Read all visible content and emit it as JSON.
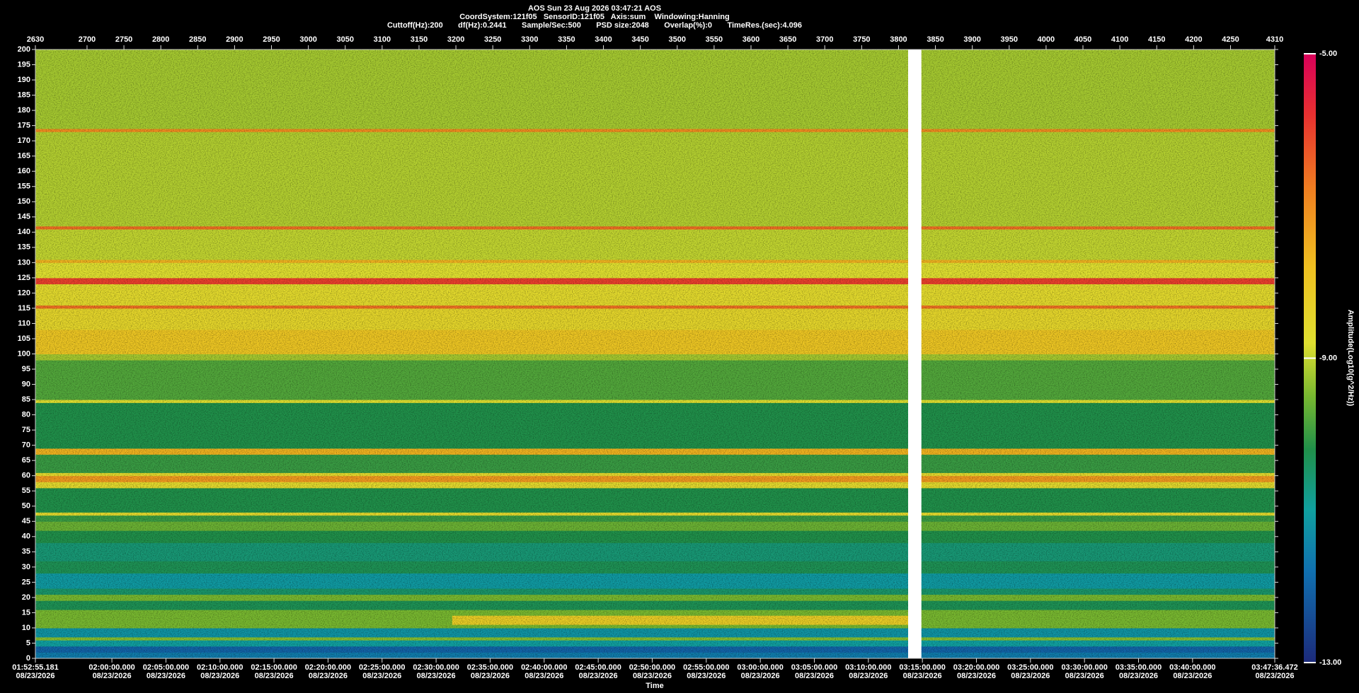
{
  "chart_data": {
    "type": "spectrogram",
    "title": "AOS  Sun 23 Aug 2026 03:47:21  AOS",
    "subtitle": [
      "CoordSystem:121f05   SensorID:121f05   Axis:sum    Windowing:Hanning",
      "Cuttoff(Hz):200       df(Hz):0.2441       Sample/Sec:500       PSD size:2048       Overlap(%):0       TimeRes.(sec):4.096"
    ],
    "xlabel": "Time",
    "colorbar_label": "Amplitude(Log10(g^2/Hz))",
    "xlim": [
      2630,
      4310
    ],
    "xticks": [
      2630,
      2700,
      2750,
      2800,
      2850,
      2900,
      2950,
      3000,
      3050,
      3100,
      3150,
      3200,
      3250,
      3300,
      3350,
      3400,
      3450,
      3500,
      3550,
      3600,
      3650,
      3700,
      3750,
      3800,
      3850,
      3900,
      3950,
      4000,
      4050,
      4100,
      4150,
      4200,
      4250,
      4310
    ],
    "timelim": [
      "2026-08-23T01:52:55.181",
      "2026-08-23T03:47:36.472"
    ],
    "timeticks": [
      {
        "value": "2026-08-23T01:52:55.181",
        "label": "01:52:55.181",
        "date": "08/23/2026"
      },
      {
        "value": "2026-08-23T02:00:00.000",
        "label": "02:00:00.000",
        "date": "08/23/2026"
      },
      {
        "value": "2026-08-23T02:05:00.000",
        "label": "02:05:00.000",
        "date": "08/23/2026"
      },
      {
        "value": "2026-08-23T02:10:00.000",
        "label": "02:10:00.000",
        "date": "08/23/2026"
      },
      {
        "value": "2026-08-23T02:15:00.000",
        "label": "02:15:00.000",
        "date": "08/23/2026"
      },
      {
        "value": "2026-08-23T02:20:00.000",
        "label": "02:20:00.000",
        "date": "08/23/2026"
      },
      {
        "value": "2026-08-23T02:25:00.000",
        "label": "02:25:00.000",
        "date": "08/23/2026"
      },
      {
        "value": "2026-08-23T02:30:00.000",
        "label": "02:30:00.000",
        "date": "08/23/2026"
      },
      {
        "value": "2026-08-23T02:35:00.000",
        "label": "02:35:00.000",
        "date": "08/23/2026"
      },
      {
        "value": "2026-08-23T02:40:00.000",
        "label": "02:40:00.000",
        "date": "08/23/2026"
      },
      {
        "value": "2026-08-23T02:45:00.000",
        "label": "02:45:00.000",
        "date": "08/23/2026"
      },
      {
        "value": "2026-08-23T02:50:00.000",
        "label": "02:50:00.000",
        "date": "08/23/2026"
      },
      {
        "value": "2026-08-23T02:55:00.000",
        "label": "02:55:00.000",
        "date": "08/23/2026"
      },
      {
        "value": "2026-08-23T03:00:00.000",
        "label": "03:00:00.000",
        "date": "08/23/2026"
      },
      {
        "value": "2026-08-23T03:05:00.000",
        "label": "03:05:00.000",
        "date": "08/23/2026"
      },
      {
        "value": "2026-08-23T03:10:00.000",
        "label": "03:10:00.000",
        "date": "08/23/2026"
      },
      {
        "value": "2026-08-23T03:15:00.000",
        "label": "03:15:00.000",
        "date": "08/23/2026"
      },
      {
        "value": "2026-08-23T03:20:00.000",
        "label": "03:20:00.000",
        "date": "08/23/2026"
      },
      {
        "value": "2026-08-23T03:25:00.000",
        "label": "03:25:00.000",
        "date": "08/23/2026"
      },
      {
        "value": "2026-08-23T03:30:00.000",
        "label": "03:30:00.000",
        "date": "08/23/2026"
      },
      {
        "value": "2026-08-23T03:35:00.000",
        "label": "03:35:00.000",
        "date": "08/23/2026"
      },
      {
        "value": "2026-08-23T03:40:00.000",
        "label": "03:40:00.000",
        "date": "08/23/2026"
      },
      {
        "value": "2026-08-23T03:47:36.472",
        "label": "03:47:36.472",
        "date": "08/23/2026"
      }
    ],
    "ylim": [
      0,
      200
    ],
    "yticks": [
      0,
      5,
      10,
      15,
      20,
      25,
      30,
      35,
      40,
      45,
      50,
      55,
      60,
      65,
      70,
      75,
      80,
      85,
      90,
      95,
      100,
      105,
      110,
      115,
      120,
      125,
      130,
      135,
      140,
      145,
      150,
      155,
      160,
      165,
      170,
      175,
      180,
      185,
      190,
      195,
      200
    ],
    "clim": [
      -13,
      -5
    ],
    "cticks": [
      {
        "value": -5,
        "label": "-5.00"
      },
      {
        "value": -9,
        "label": "-9.00"
      },
      {
        "value": -13,
        "label": "-13.00"
      }
    ],
    "colormap": [
      {
        "value": -13,
        "color": "#1c2a7a"
      },
      {
        "value": -11.8,
        "color": "#1070b0"
      },
      {
        "value": -11,
        "color": "#10a0a0"
      },
      {
        "value": -10.2,
        "color": "#20904a"
      },
      {
        "value": -9.5,
        "color": "#78b830"
      },
      {
        "value": -8.8,
        "color": "#e0e030"
      },
      {
        "value": -7.8,
        "color": "#f0c020"
      },
      {
        "value": -6.8,
        "color": "#f08020"
      },
      {
        "value": -5.8,
        "color": "#e83030"
      },
      {
        "value": -5,
        "color": "#d8005a"
      }
    ],
    "bands": [
      {
        "from": 0,
        "to": 2,
        "amplitude": -11.6
      },
      {
        "from": 2,
        "to": 4,
        "amplitude": -12
      },
      {
        "from": 4,
        "to": 6,
        "amplitude": -11
      },
      {
        "from": 6,
        "to": 7,
        "amplitude": -9.4
      },
      {
        "from": 7,
        "to": 10,
        "amplitude": -11.2
      },
      {
        "from": 10,
        "to": 16,
        "amplitude": -9.5
      },
      {
        "from": 16,
        "to": 19,
        "amplitude": -10.3
      },
      {
        "from": 19,
        "to": 21,
        "amplitude": -9.5
      },
      {
        "from": 21,
        "to": 23,
        "amplitude": -10.5
      },
      {
        "from": 23,
        "to": 28,
        "amplitude": -11.1
      },
      {
        "from": 28,
        "to": 32,
        "amplitude": -10.3
      },
      {
        "from": 32,
        "to": 38,
        "amplitude": -10.6
      },
      {
        "from": 38,
        "to": 42,
        "amplitude": -10.2
      },
      {
        "from": 42,
        "to": 45,
        "amplitude": -9.6
      },
      {
        "from": 45,
        "to": 47,
        "amplitude": -10
      },
      {
        "from": 47,
        "to": 48,
        "amplitude": -8.6
      },
      {
        "from": 48,
        "to": 56,
        "amplitude": -10.2
      },
      {
        "from": 56,
        "to": 58,
        "amplitude": -8.6
      },
      {
        "from": 58,
        "to": 60,
        "amplitude": -7.2
      },
      {
        "from": 60,
        "to": 61,
        "amplitude": -8.6
      },
      {
        "from": 61,
        "to": 67,
        "amplitude": -10
      },
      {
        "from": 67,
        "to": 69,
        "amplitude": -7.6
      },
      {
        "from": 69,
        "to": 84,
        "amplitude": -10.2
      },
      {
        "from": 84,
        "to": 85,
        "amplitude": -8.8
      },
      {
        "from": 85,
        "to": 98,
        "amplitude": -9.8
      },
      {
        "from": 98,
        "to": 100,
        "amplitude": -9.2
      },
      {
        "from": 100,
        "to": 108,
        "amplitude": -8
      },
      {
        "from": 108,
        "to": 115,
        "amplitude": -8.5
      },
      {
        "from": 115,
        "to": 116,
        "amplitude": -6.6
      },
      {
        "from": 116,
        "to": 123,
        "amplitude": -8.6
      },
      {
        "from": 123,
        "to": 125,
        "amplitude": -6
      },
      {
        "from": 125,
        "to": 130,
        "amplitude": -8.8
      },
      {
        "from": 130,
        "to": 131,
        "amplitude": -7.6
      },
      {
        "from": 131,
        "to": 141,
        "amplitude": -9
      },
      {
        "from": 141,
        "to": 142,
        "amplitude": -6.6
      },
      {
        "from": 142,
        "to": 173,
        "amplitude": -9.1
      },
      {
        "from": 173,
        "to": 174,
        "amplitude": -7
      },
      {
        "from": 174,
        "to": 200,
        "amplitude": -9.2
      }
    ],
    "regions": [
      {
        "x": [
          3195,
          3813
        ],
        "from": 11,
        "to": 14,
        "amplitude": -8.2
      }
    ],
    "gap": [
      3813,
      3831
    ]
  }
}
